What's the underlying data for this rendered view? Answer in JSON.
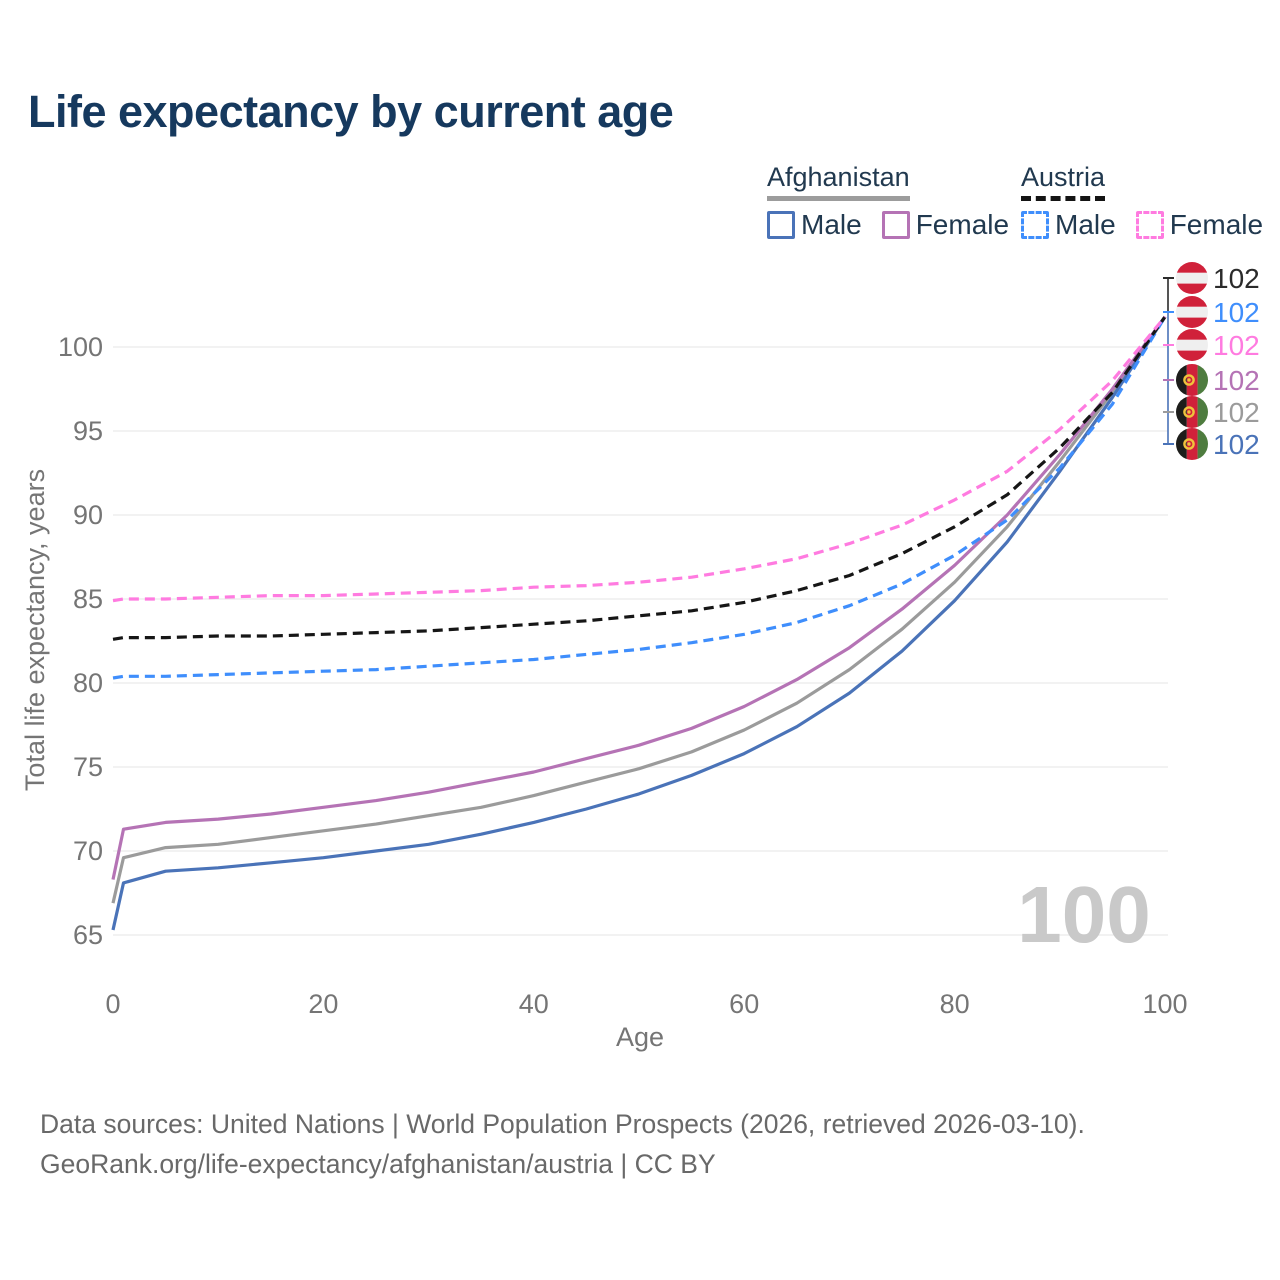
{
  "title": "Life expectancy by current age",
  "legend": {
    "groups": [
      {
        "name": "Afghanistan",
        "line_style": "solid",
        "underline_color": "#9c9c9c",
        "items": [
          {
            "label": "Male",
            "color": "#4a73b8"
          },
          {
            "label": "Female",
            "color": "#b573b5"
          }
        ]
      },
      {
        "name": "Austria",
        "line_style": "dashed",
        "underline_color": "#141414",
        "items": [
          {
            "label": "Male",
            "color": "#3f8efc"
          },
          {
            "label": "Female",
            "color": "#ff7be0"
          }
        ]
      }
    ]
  },
  "chart_data": {
    "type": "line",
    "title": "Life expectancy by current age",
    "xlabel": "Age",
    "ylabel": "Total life expectancy, years",
    "x_ticks": [
      0,
      20,
      40,
      60,
      80,
      100
    ],
    "y_ticks": [
      65,
      70,
      75,
      80,
      85,
      90,
      95,
      100
    ],
    "xlim": [
      0,
      100
    ],
    "ylim": [
      63.5,
      103
    ],
    "grid": "horizontal-only",
    "legend_position": "top-right",
    "ages": [
      0,
      1,
      5,
      10,
      15,
      20,
      25,
      30,
      35,
      40,
      45,
      50,
      55,
      60,
      65,
      70,
      75,
      80,
      85,
      90,
      95,
      100
    ],
    "series": [
      {
        "name": "Afghanistan (all)",
        "country": "Afghanistan",
        "sex": "all",
        "color": "#9b9b9b",
        "dash": false,
        "values": [
          66.9,
          69.6,
          70.2,
          70.4,
          70.8,
          71.2,
          71.6,
          72.1,
          72.6,
          73.3,
          74.1,
          74.9,
          75.9,
          77.2,
          78.8,
          80.8,
          83.2,
          86.0,
          89.3,
          93.2,
          97.3,
          101.8
        ]
      },
      {
        "name": "Afghanistan Male",
        "country": "Afghanistan",
        "sex": "male",
        "color": "#4a73b8",
        "dash": false,
        "values": [
          65.3,
          68.1,
          68.8,
          69.0,
          69.3,
          69.6,
          70.0,
          70.4,
          71.0,
          71.7,
          72.5,
          73.4,
          74.5,
          75.8,
          77.4,
          79.4,
          81.9,
          84.9,
          88.4,
          92.6,
          97.0,
          101.8
        ]
      },
      {
        "name": "Afghanistan Female",
        "country": "Afghanistan",
        "sex": "female",
        "color": "#b573b5",
        "dash": false,
        "values": [
          68.3,
          71.3,
          71.7,
          71.9,
          72.2,
          72.6,
          73.0,
          73.5,
          74.1,
          74.7,
          75.5,
          76.3,
          77.3,
          78.6,
          80.2,
          82.1,
          84.4,
          87.0,
          90.0,
          93.6,
          97.5,
          101.8
        ]
      },
      {
        "name": "Austria Male",
        "country": "Austria",
        "sex": "male",
        "color": "#3f8efc",
        "dash": true,
        "values": [
          80.3,
          80.4,
          80.4,
          80.5,
          80.6,
          80.7,
          80.8,
          81.0,
          81.2,
          81.4,
          81.7,
          82.0,
          82.4,
          82.9,
          83.6,
          84.6,
          85.9,
          87.6,
          89.7,
          92.8,
          96.6,
          101.8
        ]
      },
      {
        "name": "Austria (all)",
        "country": "Austria",
        "sex": "all",
        "color": "#161616",
        "dash": true,
        "values": [
          82.6,
          82.7,
          82.7,
          82.8,
          82.8,
          82.9,
          83.0,
          83.1,
          83.3,
          83.5,
          83.7,
          84.0,
          84.3,
          84.8,
          85.5,
          86.4,
          87.7,
          89.3,
          91.2,
          94.0,
          97.3,
          101.8
        ]
      },
      {
        "name": "Austria Female",
        "country": "Austria",
        "sex": "female",
        "color": "#ff7be0",
        "dash": true,
        "values": [
          84.9,
          85.0,
          85.0,
          85.1,
          85.2,
          85.2,
          85.3,
          85.4,
          85.5,
          85.7,
          85.8,
          86.0,
          86.3,
          86.8,
          87.4,
          88.3,
          89.4,
          90.9,
          92.6,
          95.1,
          98.0,
          101.8
        ]
      }
    ],
    "end_labels": [
      {
        "value": "102",
        "flag": "austria",
        "series": "Austria (all)",
        "color": "#2b2b2b"
      },
      {
        "value": "102",
        "flag": "austria",
        "series": "Austria Male",
        "color": "#3f8efc"
      },
      {
        "value": "102",
        "flag": "austria",
        "series": "Austria Female",
        "color": "#ff7be0"
      },
      {
        "value": "102",
        "flag": "afghanistan",
        "series": "Afghanistan Female",
        "color": "#b573b5"
      },
      {
        "value": "102",
        "flag": "afghanistan",
        "series": "Afghanistan (all)",
        "color": "#9b9b9b"
      },
      {
        "value": "102",
        "flag": "afghanistan",
        "series": "Afghanistan Male",
        "color": "#4a73b8"
      }
    ]
  },
  "watermark": "100",
  "colors": {
    "title": "#16395e",
    "axis_text": "#757575",
    "gridline": "#e9e9e9",
    "watermark": "#c9c9c9",
    "footer": "#696969"
  },
  "footer": {
    "line1": "Data sources: United Nations | World Population Prospects (2026, retrieved 2026-03-10).",
    "line2": "GeoRank.org/life-expectancy/afghanistan/austria | CC BY"
  }
}
